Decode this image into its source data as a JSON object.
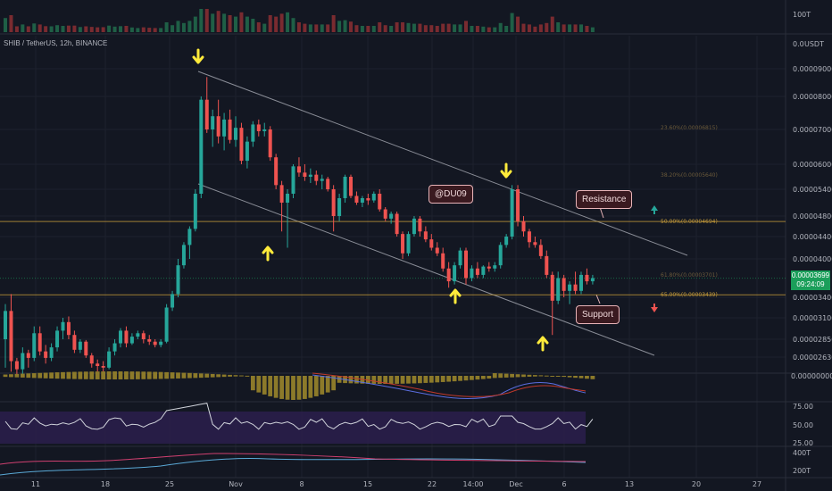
{
  "symbol_info": "SHIB / TetherUS, 12h, BINANCE",
  "quote_unit": "USDT",
  "volume_axis_label": "100T",
  "price_axis_labels": [
    "0.00009000",
    "0.00008000",
    "0.00007000",
    "0.00006000",
    "0.00005400",
    "0.00004800",
    "0.00004400",
    "0.00004000",
    "0.00003400",
    "0.00003100",
    "0.00002850",
    "0.00002630"
  ],
  "price_axis_top": "0.0",
  "macd_axis_label": "0.00000000",
  "rsi_axis_labels": [
    "75.00",
    "50.00",
    "25.00"
  ],
  "bottom_axis_labels": [
    "400T",
    "200T"
  ],
  "time_labels": [
    "11",
    "18",
    "25",
    "Nov",
    "8",
    "15",
    "22",
    "14:00",
    "Dec",
    "6",
    "13",
    "20",
    "27"
  ],
  "current_price": {
    "value": "0.00003699",
    "countdown": "09:24:09"
  },
  "fib_levels": [
    {
      "text": "50.00%(0.00004694)",
      "value": 4.694e-05
    },
    {
      "text": "65.00%(0.00003439)",
      "value": 3.439e-05
    }
  ],
  "fib_faded_levels": [
    {
      "text": "23.60%(0.00006815)"
    },
    {
      "text": "38.20%(0.00005640)"
    },
    {
      "text": "61.80%(0.00003701)"
    }
  ],
  "callouts": {
    "author": "@DU09",
    "resistance": "Resistance",
    "support": "Support"
  },
  "colors": {
    "up": "#26a69a",
    "down": "#ef5350",
    "fib": "#c49a3a",
    "arrow": "#ffeb3b",
    "rsi_band": "#2a1e4a"
  },
  "chart_data": {
    "type": "candlestick",
    "title": "SHIB / TetherUS, 12h, BINANCE",
    "y_unit": "USDT",
    "ylim": [
      2.4e-05,
      9.35e-05
    ],
    "x_range": [
      "Oct 6",
      "Dec 31"
    ],
    "candles": [
      [
        2.85e-05,
        3.3e-05,
        2.5e-05,
        3.2e-05
      ],
      [
        3.2e-05,
        3.45e-05,
        2.45e-05,
        2.58e-05
      ],
      [
        2.58e-05,
        2.62e-05,
        2.4e-05,
        2.48e-05
      ],
      [
        2.48e-05,
        2.75e-05,
        2.4e-05,
        2.68e-05
      ],
      [
        2.68e-05,
        2.72e-05,
        2.5e-05,
        2.62e-05
      ],
      [
        2.62e-05,
        3e-05,
        2.58e-05,
        2.92e-05
      ],
      [
        2.92e-05,
        3e-05,
        2.65e-05,
        2.7e-05
      ],
      [
        2.7e-05,
        2.78e-05,
        2.55e-05,
        2.62e-05
      ],
      [
        2.62e-05,
        2.8e-05,
        2.58e-05,
        2.75e-05
      ],
      [
        2.75e-05,
        3e-05,
        2.7e-05,
        2.95e-05
      ],
      [
        2.95e-05,
        3.1e-05,
        2.85e-05,
        3.05e-05
      ],
      [
        3.05e-05,
        3.12e-05,
        2.85e-05,
        2.9e-05
      ],
      [
        2.9e-05,
        2.95e-05,
        2.68e-05,
        2.72e-05
      ],
      [
        2.72e-05,
        2.85e-05,
        2.68e-05,
        2.82e-05
      ],
      [
        2.82e-05,
        2.84e-05,
        2.62e-05,
        2.65e-05
      ],
      [
        2.65e-05,
        2.68e-05,
        2.5e-05,
        2.55e-05
      ],
      [
        2.55e-05,
        2.6e-05,
        2.45e-05,
        2.52e-05
      ],
      [
        2.52e-05,
        2.58e-05,
        2.42e-05,
        2.5e-05
      ],
      [
        2.5e-05,
        2.75e-05,
        2.48e-05,
        2.7e-05
      ],
      [
        2.7e-05,
        2.85e-05,
        2.65e-05,
        2.8e-05
      ],
      [
        2.8e-05,
        2.98e-05,
        2.75e-05,
        2.95e-05
      ],
      [
        2.95e-05,
        3e-05,
        2.75e-05,
        2.8e-05
      ],
      [
        2.8e-05,
        2.92e-05,
        2.78e-05,
        2.88e-05
      ],
      [
        2.88e-05,
        2.95e-05,
        2.85e-05,
        2.92e-05
      ],
      [
        2.92e-05,
        2.95e-05,
        2.8e-05,
        2.85e-05
      ],
      [
        2.85e-05,
        2.9e-05,
        2.78e-05,
        2.82e-05
      ],
      [
        2.82e-05,
        2.85e-05,
        2.75e-05,
        2.78e-05
      ],
      [
        2.78e-05,
        2.85e-05,
        2.75e-05,
        2.82e-05
      ],
      [
        2.82e-05,
        3.3e-05,
        2.8e-05,
        3.25e-05
      ],
      [
        3.25e-05,
        3.5e-05,
        3.2e-05,
        3.45e-05
      ],
      [
        3.45e-05,
        4e-05,
        3.4e-05,
        3.9e-05
      ],
      [
        3.9e-05,
        4.3e-05,
        3.85e-05,
        4.25e-05
      ],
      [
        4.25e-05,
        4.6e-05,
        4e-05,
        4.55e-05
      ],
      [
        4.55e-05,
        5.4e-05,
        4.5e-05,
        5.3e-05
      ],
      [
        5.3e-05,
        8e-05,
        5.2e-05,
        7.9e-05
      ],
      [
        7.9e-05,
        8.7e-05,
        6.9e-05,
        7e-05
      ],
      [
        7e-05,
        7.6e-05,
        6.5e-05,
        7.4e-05
      ],
      [
        7.4e-05,
        7.9e-05,
        6.6e-05,
        6.8e-05
      ],
      [
        6.8e-05,
        7.5e-05,
        6.4e-05,
        7.3e-05
      ],
      [
        7.3e-05,
        7.6e-05,
        6.6e-05,
        6.7e-05
      ],
      [
        6.7e-05,
        7.4e-05,
        6.5e-05,
        7.05e-05
      ],
      [
        7.05e-05,
        7.2e-05,
        6e-05,
        6.1e-05
      ],
      [
        6.1e-05,
        6.8e-05,
        5.9e-05,
        6.65e-05
      ],
      [
        6.65e-05,
        7.25e-05,
        6.5e-05,
        7.15e-05
      ],
      [
        7.15e-05,
        7.3e-05,
        6.8e-05,
        6.95e-05
      ],
      [
        6.95e-05,
        7.2e-05,
        6.8e-05,
        7e-05
      ],
      [
        7e-05,
        7.1e-05,
        6.1e-05,
        6.2e-05
      ],
      [
        6.2e-05,
        6.3e-05,
        5.4e-05,
        5.5e-05
      ],
      [
        5.5e-05,
        5.6e-05,
        4.5e-05,
        5.1e-05
      ],
      [
        5.1e-05,
        5.4e-05,
        4.2e-05,
        5.3e-05
      ],
      [
        5.3e-05,
        6e-05,
        5.2e-05,
        5.95e-05
      ],
      [
        5.95e-05,
        6.2e-05,
        5.7e-05,
        5.8e-05
      ],
      [
        5.8e-05,
        6e-05,
        5.6e-05,
        5.7e-05
      ],
      [
        5.7e-05,
        5.9e-05,
        5.55e-05,
        5.75e-05
      ],
      [
        5.75e-05,
        5.85e-05,
        5.5e-05,
        5.6e-05
      ],
      [
        5.6e-05,
        5.75e-05,
        5.4e-05,
        5.65e-05
      ],
      [
        5.65e-05,
        5.7e-05,
        5.35e-05,
        5.4e-05
      ],
      [
        5.4e-05,
        5.5e-05,
        4.5e-05,
        4.8e-05
      ],
      [
        4.8e-05,
        5.3e-05,
        4.7e-05,
        5.2e-05
      ],
      [
        5.2e-05,
        5.75e-05,
        5.1e-05,
        5.7e-05
      ],
      [
        5.7e-05,
        5.75e-05,
        5.2e-05,
        5.25e-05
      ],
      [
        5.25e-05,
        5.35e-05,
        5.05e-05,
        5.1e-05
      ],
      [
        5.1e-05,
        5.25e-05,
        5e-05,
        5.2e-05
      ],
      [
        5.2e-05,
        5.3e-05,
        5.05e-05,
        5.15e-05
      ],
      [
        5.15e-05,
        5.35e-05,
        5.1e-05,
        5.3e-05
      ],
      [
        5.3e-05,
        5.4e-05,
        4.9e-05,
        4.95e-05
      ],
      [
        4.95e-05,
        5e-05,
        4.7e-05,
        4.75e-05
      ],
      [
        4.75e-05,
        4.9e-05,
        4.65e-05,
        4.85e-05
      ],
      [
        4.85e-05,
        4.9e-05,
        4.4e-05,
        4.45e-05
      ],
      [
        4.45e-05,
        4.5e-05,
        4e-05,
        4.1e-05
      ],
      [
        4.1e-05,
        4.5e-05,
        4.05e-05,
        4.45e-05
      ],
      [
        4.45e-05,
        4.8e-05,
        4.4e-05,
        4.75e-05
      ],
      [
        4.75e-05,
        4.8e-05,
        4.4e-05,
        4.5e-05
      ],
      [
        4.5e-05,
        4.6e-05,
        4.3e-05,
        4.35e-05
      ],
      [
        4.35e-05,
        4.45e-05,
        4.15e-05,
        4.2e-05
      ],
      [
        4.2e-05,
        4.3e-05,
        4.05e-05,
        4.1e-05
      ],
      [
        4.1e-05,
        4.2e-05,
        3.8e-05,
        3.85e-05
      ],
      [
        3.85e-05,
        3.95e-05,
        3.55e-05,
        3.65e-05
      ],
      [
        3.65e-05,
        3.95e-05,
        3.6e-05,
        3.9e-05
      ],
      [
        3.9e-05,
        4.2e-05,
        3.85e-05,
        4.15e-05
      ],
      [
        4.15e-05,
        4.2e-05,
        3.6e-05,
        3.7e-05
      ],
      [
        3.7e-05,
        3.9e-05,
        3.65e-05,
        3.85e-05
      ],
      [
        3.85e-05,
        3.95e-05,
        3.7e-05,
        3.75e-05
      ],
      [
        3.75e-05,
        3.9e-05,
        3.7e-05,
        3.88e-05
      ],
      [
        3.88e-05,
        3.95e-05,
        3.8e-05,
        3.85e-05
      ],
      [
        3.85e-05,
        3.95e-05,
        3.8e-05,
        3.9e-05
      ],
      [
        3.9e-05,
        4.3e-05,
        3.85e-05,
        4.25e-05
      ],
      [
        4.25e-05,
        4.45e-05,
        4.2e-05,
        4.4e-05
      ],
      [
        4.4e-05,
        5.5e-05,
        4.35e-05,
        5.4e-05
      ],
      [
        5.4e-05,
        5.5e-05,
        4.6e-05,
        4.7e-05
      ],
      [
        4.7e-05,
        4.8e-05,
        4.4e-05,
        4.5e-05
      ],
      [
        4.5e-05,
        4.55e-05,
        4.2e-05,
        4.3e-05
      ],
      [
        4.3e-05,
        4.4e-05,
        4.2e-05,
        4.25e-05
      ],
      [
        4.25e-05,
        4.35e-05,
        4e-05,
        4.05e-05
      ],
      [
        4.05e-05,
        4.15e-05,
        3.7e-05,
        3.75e-05
      ],
      [
        3.75e-05,
        3.8e-05,
        2.9e-05,
        3.35e-05
      ],
      [
        3.35e-05,
        3.8e-05,
        3.3e-05,
        3.7e-05
      ],
      [
        3.7e-05,
        3.75e-05,
        3.4e-05,
        3.5e-05
      ],
      [
        3.5e-05,
        3.65e-05,
        3.3e-05,
        3.6e-05
      ],
      [
        3.6e-05,
        3.8e-05,
        3.45e-05,
        3.5e-05
      ],
      [
        3.5e-05,
        3.8e-05,
        3.45e-05,
        3.75e-05
      ],
      [
        3.75e-05,
        3.85e-05,
        3.6e-05,
        3.65e-05
      ],
      [
        3.65e-05,
        3.75e-05,
        3.6e-05,
        3.7e-05
      ]
    ]
  }
}
